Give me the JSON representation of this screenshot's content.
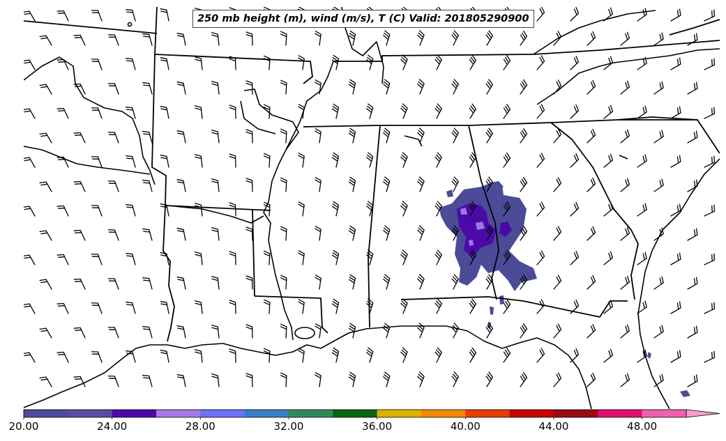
{
  "title": "250 mb height (m), wind (m/s), T (C) Valid: 201805290900",
  "colorbar": {
    "labels": [
      "20.00",
      "24.00",
      "28.00",
      "32.00",
      "36.00",
      "40.00",
      "44.00",
      "48.00"
    ],
    "label_values": [
      20,
      24,
      28,
      32,
      36,
      40,
      44,
      48
    ],
    "range": [
      20,
      51.5
    ],
    "bin_edges": [
      20,
      22,
      24,
      26,
      28,
      30,
      32,
      34,
      36,
      38,
      40,
      42,
      44,
      46,
      48,
      50
    ],
    "colors": [
      "#4b4b98",
      "#5a4d9e",
      "#4b0aa8",
      "#a878e8",
      "#7070f8",
      "#3a7ec8",
      "#2e8b57",
      "#0a6414",
      "#d8b400",
      "#f08a00",
      "#e83c00",
      "#c80000",
      "#9a0a14",
      "#e0106e",
      "#f060b0",
      "#ff9ec8"
    ],
    "extend": "max"
  },
  "shading": {
    "colors": {
      "base": "#4b4b98",
      "mid": "#4b0aa8",
      "light": "#9a78e0"
    }
  },
  "map": {
    "region": "Southeastern United States",
    "line_color": "#000000",
    "barb_color": "#000000"
  }
}
